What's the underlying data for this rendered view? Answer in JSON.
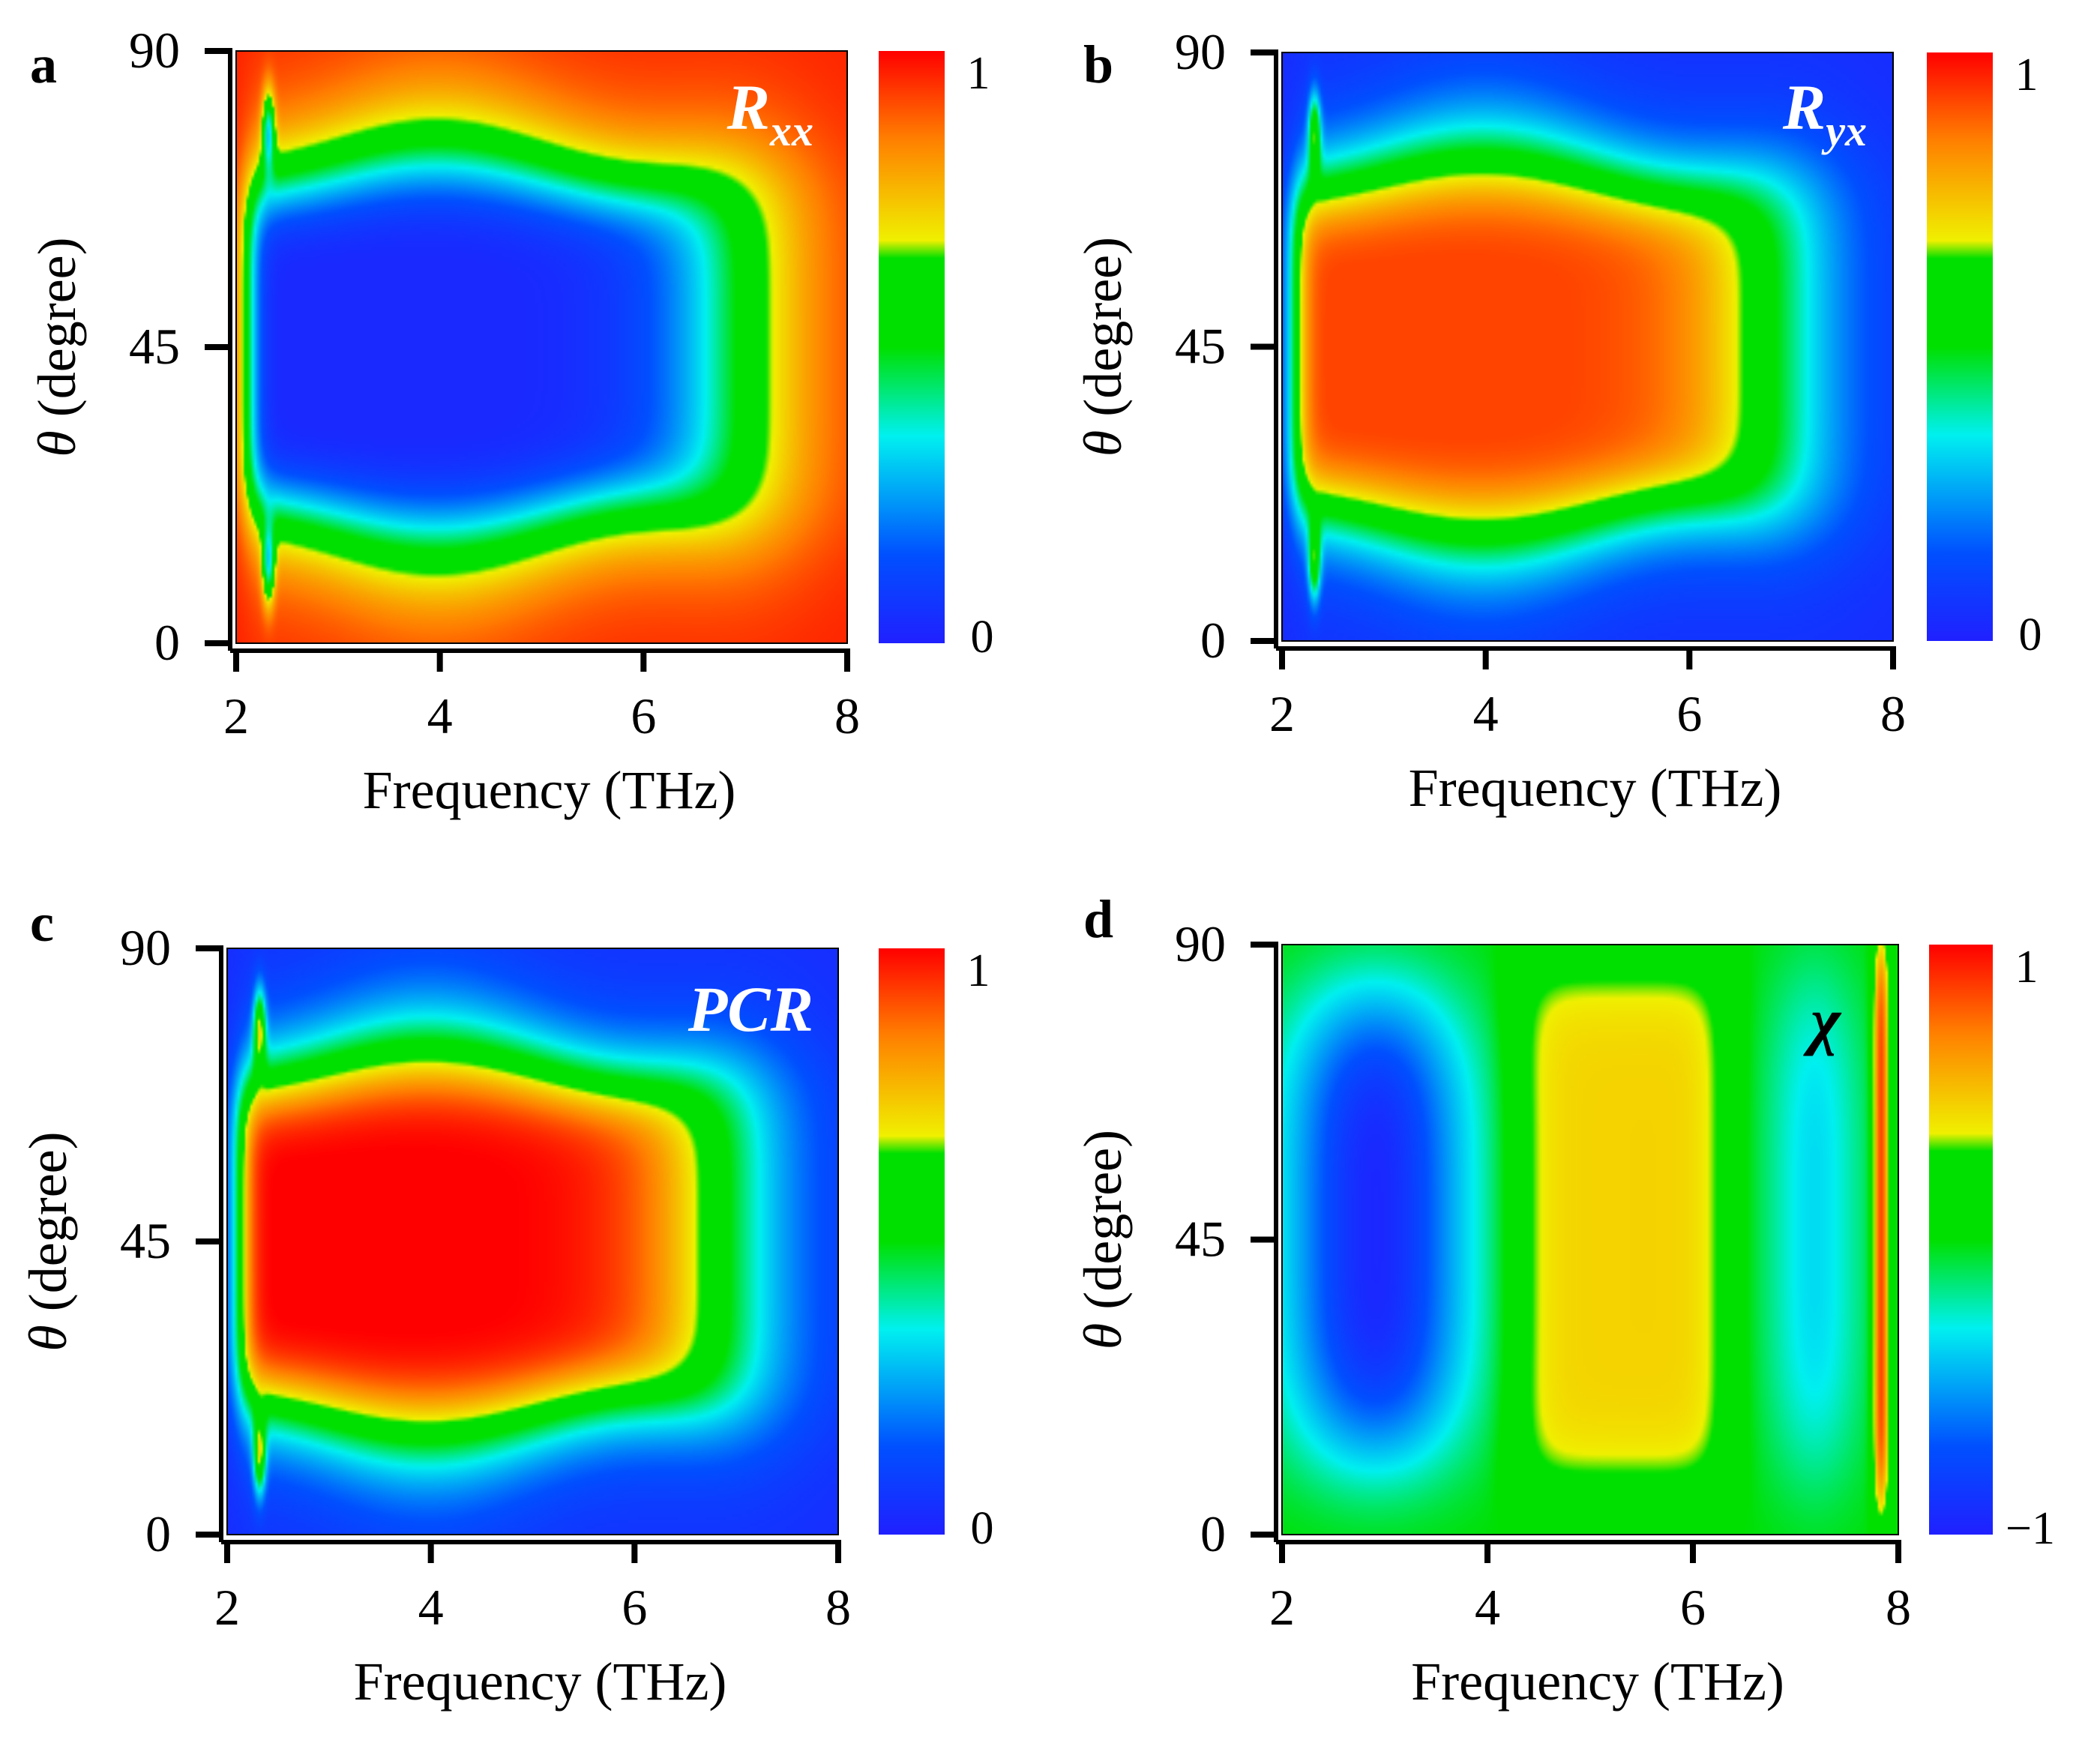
{
  "figure": {
    "description_free": true
  },
  "chart_data": [
    {
      "panel": "a",
      "type": "heatmap",
      "label": "R",
      "label_sub": "xx",
      "label_color": "#ffffff",
      "xlabel": "Frequency (THz)",
      "ylabel_symbol": "θ",
      "ylabel_rest": " (degree)",
      "xlim": [
        2,
        8
      ],
      "ylim": [
        0,
        90
      ],
      "xticks": [
        "2",
        "4",
        "6",
        "8"
      ],
      "yticks": [
        "0",
        "45",
        "90"
      ],
      "colorbar": {
        "min_label": "0",
        "max_label": "1",
        "range": [
          0,
          1
        ]
      },
      "model": "rxx"
    },
    {
      "panel": "b",
      "type": "heatmap",
      "label": "R",
      "label_sub": "yx",
      "label_color": "#ffffff",
      "xlabel": "Frequency (THz)",
      "ylabel_symbol": "θ",
      "ylabel_rest": " (degree)",
      "xlim": [
        2,
        8
      ],
      "ylim": [
        0,
        90
      ],
      "xticks": [
        "2",
        "4",
        "6",
        "8"
      ],
      "yticks": [
        "0",
        "45",
        "90"
      ],
      "colorbar": {
        "min_label": "0",
        "max_label": "1",
        "range": [
          0,
          1
        ]
      },
      "model": "ryx"
    },
    {
      "panel": "c",
      "type": "heatmap",
      "label": "PCR",
      "label_sub": "",
      "label_color": "#ffffff",
      "xlabel": "Frequency (THz)",
      "ylabel_symbol": "θ",
      "ylabel_rest": " (degree)",
      "xlim": [
        2,
        8
      ],
      "ylim": [
        0,
        90
      ],
      "xticks": [
        "2",
        "4",
        "6",
        "8"
      ],
      "yticks": [
        "0",
        "45",
        "90"
      ],
      "colorbar": {
        "min_label": "0",
        "max_label": "1",
        "range": [
          0,
          1
        ]
      },
      "model": "pcr"
    },
    {
      "panel": "d",
      "type": "heatmap",
      "label": "χ",
      "label_sub": "",
      "label_color": "#000000",
      "xlabel": "Frequency (THz)",
      "ylabel_symbol": "θ",
      "ylabel_rest": " (degree)",
      "xlim": [
        2,
        8
      ],
      "ylim": [
        0,
        90
      ],
      "xticks": [
        "2",
        "4",
        "6",
        "8"
      ],
      "yticks": [
        "0",
        "45",
        "90"
      ],
      "colorbar": {
        "min_label": "−1",
        "max_label": "1",
        "range": [
          -1,
          1
        ]
      },
      "model": "chi"
    }
  ]
}
